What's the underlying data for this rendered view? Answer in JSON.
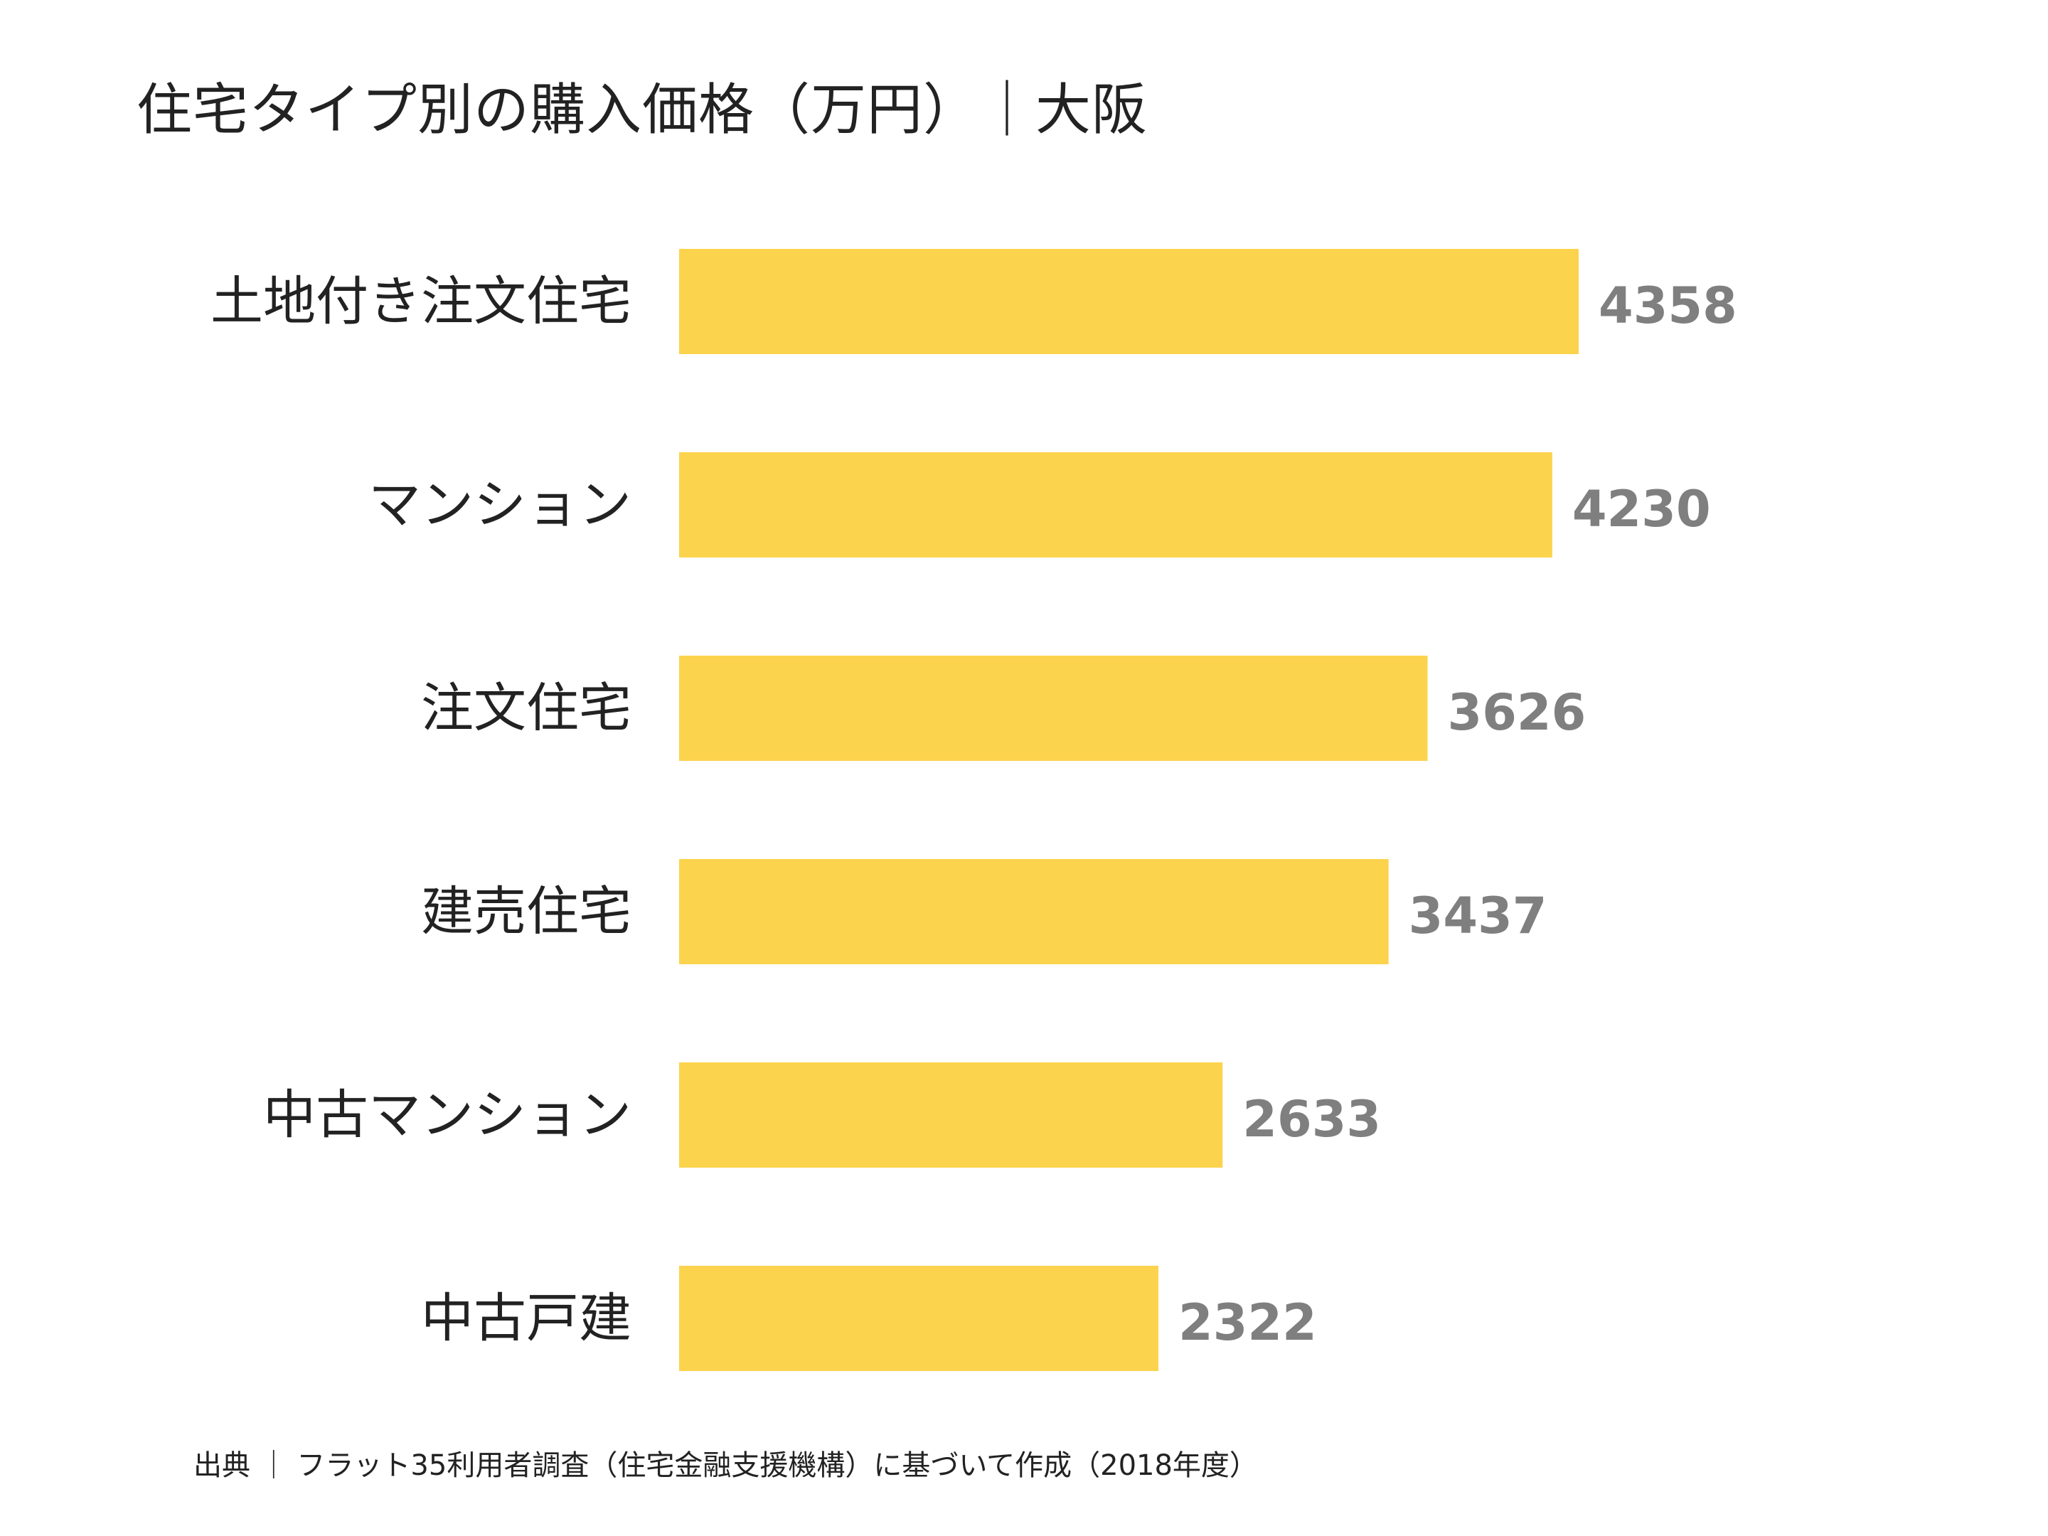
{
  "chart_data": {
    "type": "bar",
    "orientation": "horizontal",
    "title": "住宅タイプ別の購入価格（万円）｜大阪",
    "categories": [
      "土地付き注文住宅",
      "マンション",
      "注文住宅",
      "建売住宅",
      "中古マンション",
      "中古戸建"
    ],
    "values": [
      4358,
      4230,
      3626,
      3437,
      2633,
      2322
    ],
    "xlim": [
      0,
      4358
    ],
    "grid": false,
    "legend": "none",
    "bar_color": "#fcd34d",
    "value_label_color": "#7f7f7f",
    "source": "出典 ｜ フラット35利用者調査（住宅金融支援機構）に基づいて作成（2018年度）"
  }
}
